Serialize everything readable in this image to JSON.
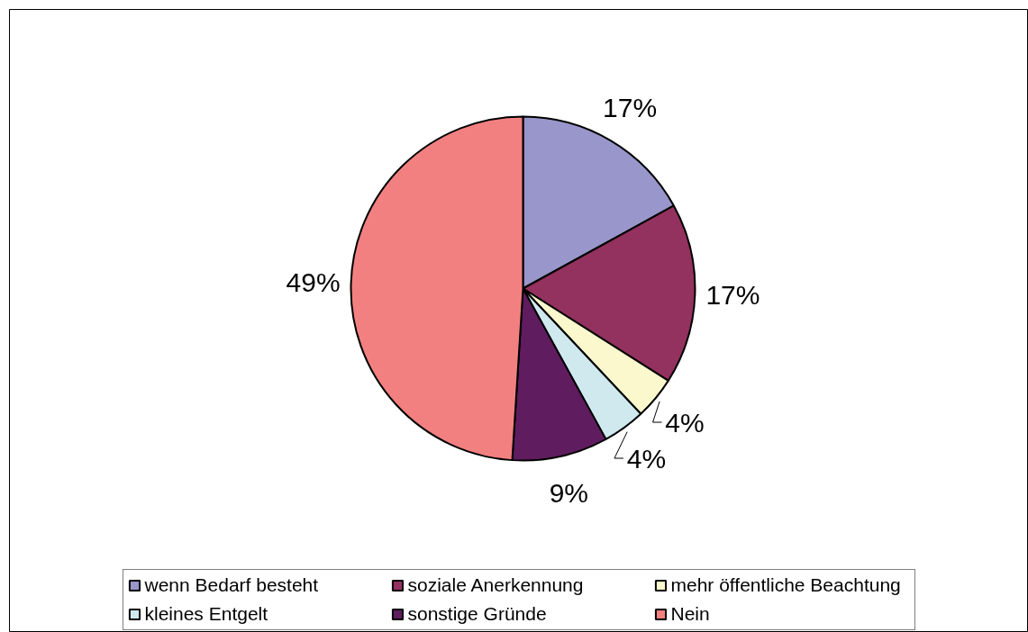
{
  "chart_data": {
    "type": "pie",
    "categories": [
      "wenn Bedarf besteht",
      "soziale Anerkennung",
      "mehr öffentliche Beachtung",
      "kleines Entgelt",
      "sonstige Gründe",
      "Nein"
    ],
    "values": [
      17,
      17,
      4,
      4,
      9,
      49
    ],
    "value_labels": [
      "17%",
      "17%",
      "4%",
      "4%",
      "9%",
      "49%"
    ],
    "colors": [
      "#9896ca",
      "#93315f",
      "#fbf8cd",
      "#cfe9ef",
      "#5f1c5e",
      "#f38080"
    ],
    "legend": "bottom"
  }
}
